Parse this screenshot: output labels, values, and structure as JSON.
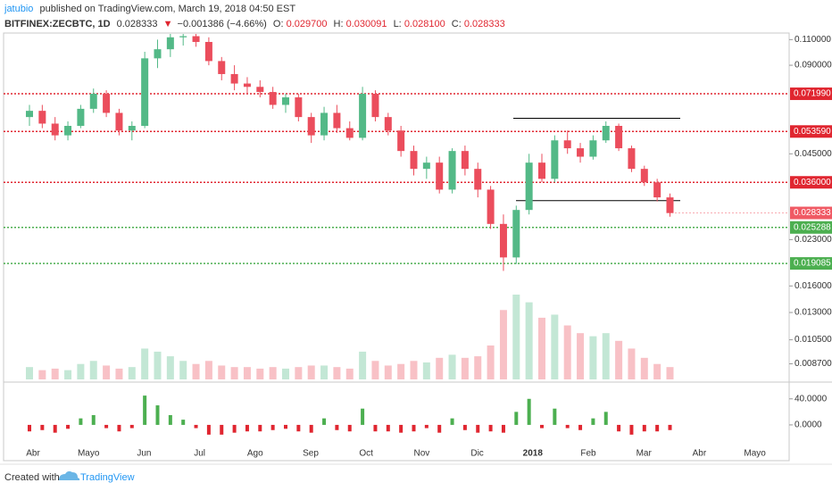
{
  "header": {
    "author": "jatubio",
    "published": "published on TradingView.com, March 19, 2018 04:50 EST",
    "symbol": "BITFINEX:ZECBTC, 1D",
    "last": "0.028333",
    "change_arrow": "▼",
    "change": "−0.001386 (−4.66%)",
    "o_label": "O:",
    "o": "0.029700",
    "h_label": "H:",
    "h": "0.030091",
    "l_label": "L:",
    "l": "0.028100",
    "c_label": "C:",
    "c": "0.028333"
  },
  "chart_data": {
    "type": "candlestick",
    "log_scale": true,
    "ylim": [
      0.0077,
      0.115
    ],
    "yticks": [
      {
        "value": 0.11,
        "label": "0.110000"
      },
      {
        "value": 0.09,
        "label": "0.090000"
      },
      {
        "value": 0.045,
        "label": "0.045000"
      },
      {
        "value": 0.023,
        "label": "0.023000"
      },
      {
        "value": 0.016,
        "label": "0.016000"
      },
      {
        "value": 0.013,
        "label": "0.013000"
      },
      {
        "value": 0.0105,
        "label": "0.010500"
      },
      {
        "value": 0.0087,
        "label": "0.008700"
      }
    ],
    "x_labels": [
      "Abr",
      "Mayo",
      "Jun",
      "Jul",
      "Ago",
      "Sep",
      "Oct",
      "Nov",
      "Dic",
      "2018",
      "Feb",
      "Mar",
      "Abr",
      "Mayo"
    ],
    "up_color": "#53b987",
    "down_color": "#eb4d5c",
    "candles": {
      "open": [
        0.06,
        0.063,
        0.057,
        0.052,
        0.056,
        0.064,
        0.072,
        0.062,
        0.054,
        0.056,
        0.095,
        0.102,
        0.112,
        0.113,
        0.108,
        0.093,
        0.084,
        0.078,
        0.076,
        0.073,
        0.066,
        0.07,
        0.06,
        0.052,
        0.062,
        0.055,
        0.051,
        0.072,
        0.06,
        0.054,
        0.046,
        0.04,
        0.042,
        0.034,
        0.046,
        0.04,
        0.034,
        0.026,
        0.02,
        0.029,
        0.042,
        0.037,
        0.05,
        0.047,
        0.044,
        0.05,
        0.056,
        0.047,
        0.04,
        0.036,
        0.032
      ],
      "high": [
        0.066,
        0.066,
        0.06,
        0.058,
        0.066,
        0.075,
        0.074,
        0.064,
        0.058,
        0.1,
        0.11,
        0.115,
        0.115,
        0.115,
        0.112,
        0.096,
        0.09,
        0.082,
        0.08,
        0.076,
        0.072,
        0.072,
        0.062,
        0.065,
        0.066,
        0.058,
        0.076,
        0.074,
        0.062,
        0.056,
        0.048,
        0.044,
        0.044,
        0.047,
        0.048,
        0.042,
        0.035,
        0.028,
        0.03,
        0.045,
        0.045,
        0.052,
        0.054,
        0.049,
        0.052,
        0.058,
        0.057,
        0.048,
        0.041,
        0.037,
        0.033
      ],
      "low": [
        0.056,
        0.055,
        0.05,
        0.05,
        0.055,
        0.062,
        0.06,
        0.052,
        0.05,
        0.055,
        0.088,
        0.096,
        0.105,
        0.104,
        0.09,
        0.08,
        0.074,
        0.072,
        0.07,
        0.064,
        0.062,
        0.058,
        0.049,
        0.05,
        0.053,
        0.05,
        0.05,
        0.058,
        0.052,
        0.044,
        0.038,
        0.037,
        0.033,
        0.033,
        0.038,
        0.032,
        0.025,
        0.018,
        0.019,
        0.028,
        0.036,
        0.036,
        0.045,
        0.042,
        0.043,
        0.049,
        0.046,
        0.039,
        0.035,
        0.031,
        0.0275
      ],
      "close": [
        0.063,
        0.057,
        0.052,
        0.056,
        0.064,
        0.072,
        0.062,
        0.054,
        0.056,
        0.095,
        0.102,
        0.112,
        0.113,
        0.108,
        0.093,
        0.084,
        0.078,
        0.076,
        0.073,
        0.066,
        0.07,
        0.06,
        0.052,
        0.062,
        0.055,
        0.051,
        0.072,
        0.06,
        0.054,
        0.046,
        0.04,
        0.042,
        0.034,
        0.046,
        0.04,
        0.034,
        0.026,
        0.02,
        0.029,
        0.042,
        0.037,
        0.05,
        0.047,
        0.044,
        0.05,
        0.056,
        0.047,
        0.04,
        0.036,
        0.032,
        0.0283
      ]
    },
    "levels": [
      {
        "value": 0.07199,
        "label": "0.071990",
        "color": "#e02630"
      },
      {
        "value": 0.05359,
        "label": "0.053590",
        "color": "#e02630"
      },
      {
        "value": 0.036,
        "label": "0.036000",
        "color": "#e02630"
      },
      {
        "value": 0.025288,
        "label": "0.025288",
        "color": "#4caf50"
      },
      {
        "value": 0.019085,
        "label": "0.019085",
        "color": "#4caf50"
      }
    ],
    "last_price": {
      "value": 0.028333,
      "label": "0.028333",
      "color": "#f05a64"
    },
    "trend_lines": [
      0.0594,
      0.0312
    ],
    "volume": [
      8,
      6,
      7,
      6,
      10,
      12,
      9,
      7,
      8,
      20,
      18,
      15,
      12,
      10,
      12,
      9,
      8,
      8,
      7,
      8,
      7,
      8,
      9,
      9,
      8,
      7,
      18,
      12,
      9,
      10,
      12,
      11,
      14,
      16,
      14,
      15,
      22,
      45,
      55,
      50,
      40,
      42,
      35,
      30,
      28,
      30,
      25,
      20,
      14,
      10,
      8
    ],
    "oscillator": {
      "ylim": [
        -33,
        63
      ],
      "yticks": [
        {
          "value": 40,
          "label": "40.0000"
        },
        {
          "value": 0,
          "label": "0.0000"
        }
      ],
      "values": [
        -10,
        -8,
        -12,
        -6,
        10,
        15,
        -5,
        -10,
        -5,
        45,
        30,
        15,
        8,
        -5,
        -15,
        -15,
        -12,
        -10,
        -10,
        -8,
        -6,
        -10,
        -12,
        10,
        -8,
        -10,
        25,
        -10,
        -10,
        -12,
        -10,
        -5,
        -12,
        10,
        -8,
        -12,
        -10,
        -12,
        20,
        40,
        -5,
        25,
        -5,
        -8,
        10,
        20,
        -10,
        -15,
        -10,
        -10,
        -8
      ]
    }
  },
  "footer": {
    "created": "Created with",
    "brand": "TradingView"
  }
}
